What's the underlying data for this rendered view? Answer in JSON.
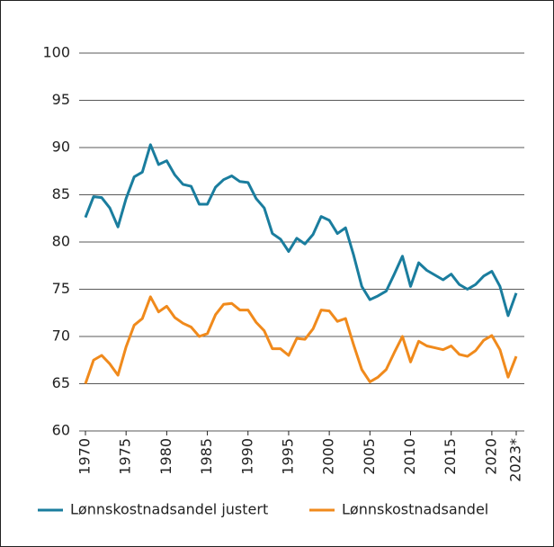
{
  "chart_data": {
    "type": "line",
    "categories": [
      "1970",
      null,
      null,
      null,
      null,
      "1975",
      null,
      null,
      null,
      null,
      "1980",
      null,
      null,
      null,
      null,
      "1985",
      null,
      null,
      null,
      null,
      "1990",
      null,
      null,
      null,
      null,
      "1995",
      null,
      null,
      null,
      null,
      "2000",
      null,
      null,
      null,
      null,
      "2005",
      null,
      null,
      null,
      null,
      "2010",
      null,
      null,
      null,
      null,
      "2015",
      null,
      null,
      null,
      null,
      "2020",
      null,
      null,
      "2023*"
    ],
    "series": [
      {
        "name": "Lønnskostnadsandel justert",
        "color": "#1a7d9e",
        "values": [
          82.6,
          84.8,
          84.7,
          83.6,
          81.6,
          84.6,
          86.9,
          87.4,
          90.3,
          88.2,
          88.6,
          87.1,
          86.1,
          85.9,
          84.0,
          84.0,
          85.8,
          86.6,
          87.0,
          86.4,
          86.3,
          84.6,
          83.6,
          80.9,
          80.3,
          79.0,
          80.4,
          79.8,
          80.8,
          82.7,
          82.3,
          80.9,
          81.5,
          78.6,
          75.3,
          73.9,
          74.3,
          74.8,
          76.6,
          78.5,
          75.3,
          77.8,
          77.0,
          76.5,
          76.0,
          76.6,
          75.5,
          75.0,
          75.5,
          76.4,
          76.9,
          75.3,
          72.2,
          74.6
        ]
      },
      {
        "name": "Lønnskostnadsandel",
        "color": "#f08a1c",
        "values": [
          65.0,
          67.5,
          68.0,
          67.1,
          65.9,
          68.9,
          71.2,
          71.9,
          74.2,
          72.6,
          73.2,
          72.0,
          71.4,
          71.0,
          70.0,
          70.3,
          72.3,
          73.4,
          73.5,
          72.8,
          72.8,
          71.5,
          70.6,
          68.7,
          68.7,
          68.0,
          69.8,
          69.7,
          70.8,
          72.8,
          72.7,
          71.6,
          71.9,
          69.1,
          66.5,
          65.2,
          65.7,
          66.5,
          68.3,
          70.0,
          67.3,
          69.5,
          69.0,
          68.8,
          68.6,
          69.0,
          68.1,
          67.9,
          68.5,
          69.6,
          70.1,
          68.6,
          65.7,
          67.9
        ]
      }
    ],
    "ylim": [
      60,
      100
    ],
    "yticks": [
      60,
      65,
      70,
      75,
      80,
      85,
      90,
      95,
      100
    ],
    "grid": true
  }
}
